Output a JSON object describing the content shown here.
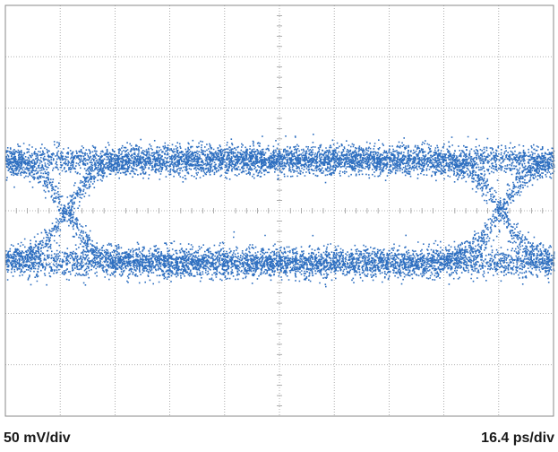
{
  "chart_data": {
    "type": "scatter",
    "title": "",
    "grid": true,
    "divisions": {
      "horizontal": 10,
      "vertical": 8
    },
    "minor_ticks_per_division": 5,
    "vertical_scale": "50 mV/div",
    "horizontal_scale": "16.4 ps/div",
    "xlim": [
      0,
      164
    ],
    "ylim": [
      -200,
      200
    ],
    "series": [
      {
        "color": "#2e6fc0",
        "kind": "eye-diagram",
        "levels": [
          50,
          -50
        ],
        "level_noise": 7,
        "crossings": [
          18,
          148
        ],
        "crossing_half_width": 9,
        "crossing_level": 0,
        "upper_opening_peak": 30,
        "lower_opening_peak": -26,
        "points_approx": 22000
      }
    ]
  },
  "labels": {
    "vertical_scale": "50 mV/div",
    "horizontal_scale": "16.4 ps/div"
  },
  "colors": {
    "trace": "#2e6fc0",
    "grid": "#9a9a9a",
    "frame": "#8a8a8a",
    "background": "#ffffff"
  }
}
